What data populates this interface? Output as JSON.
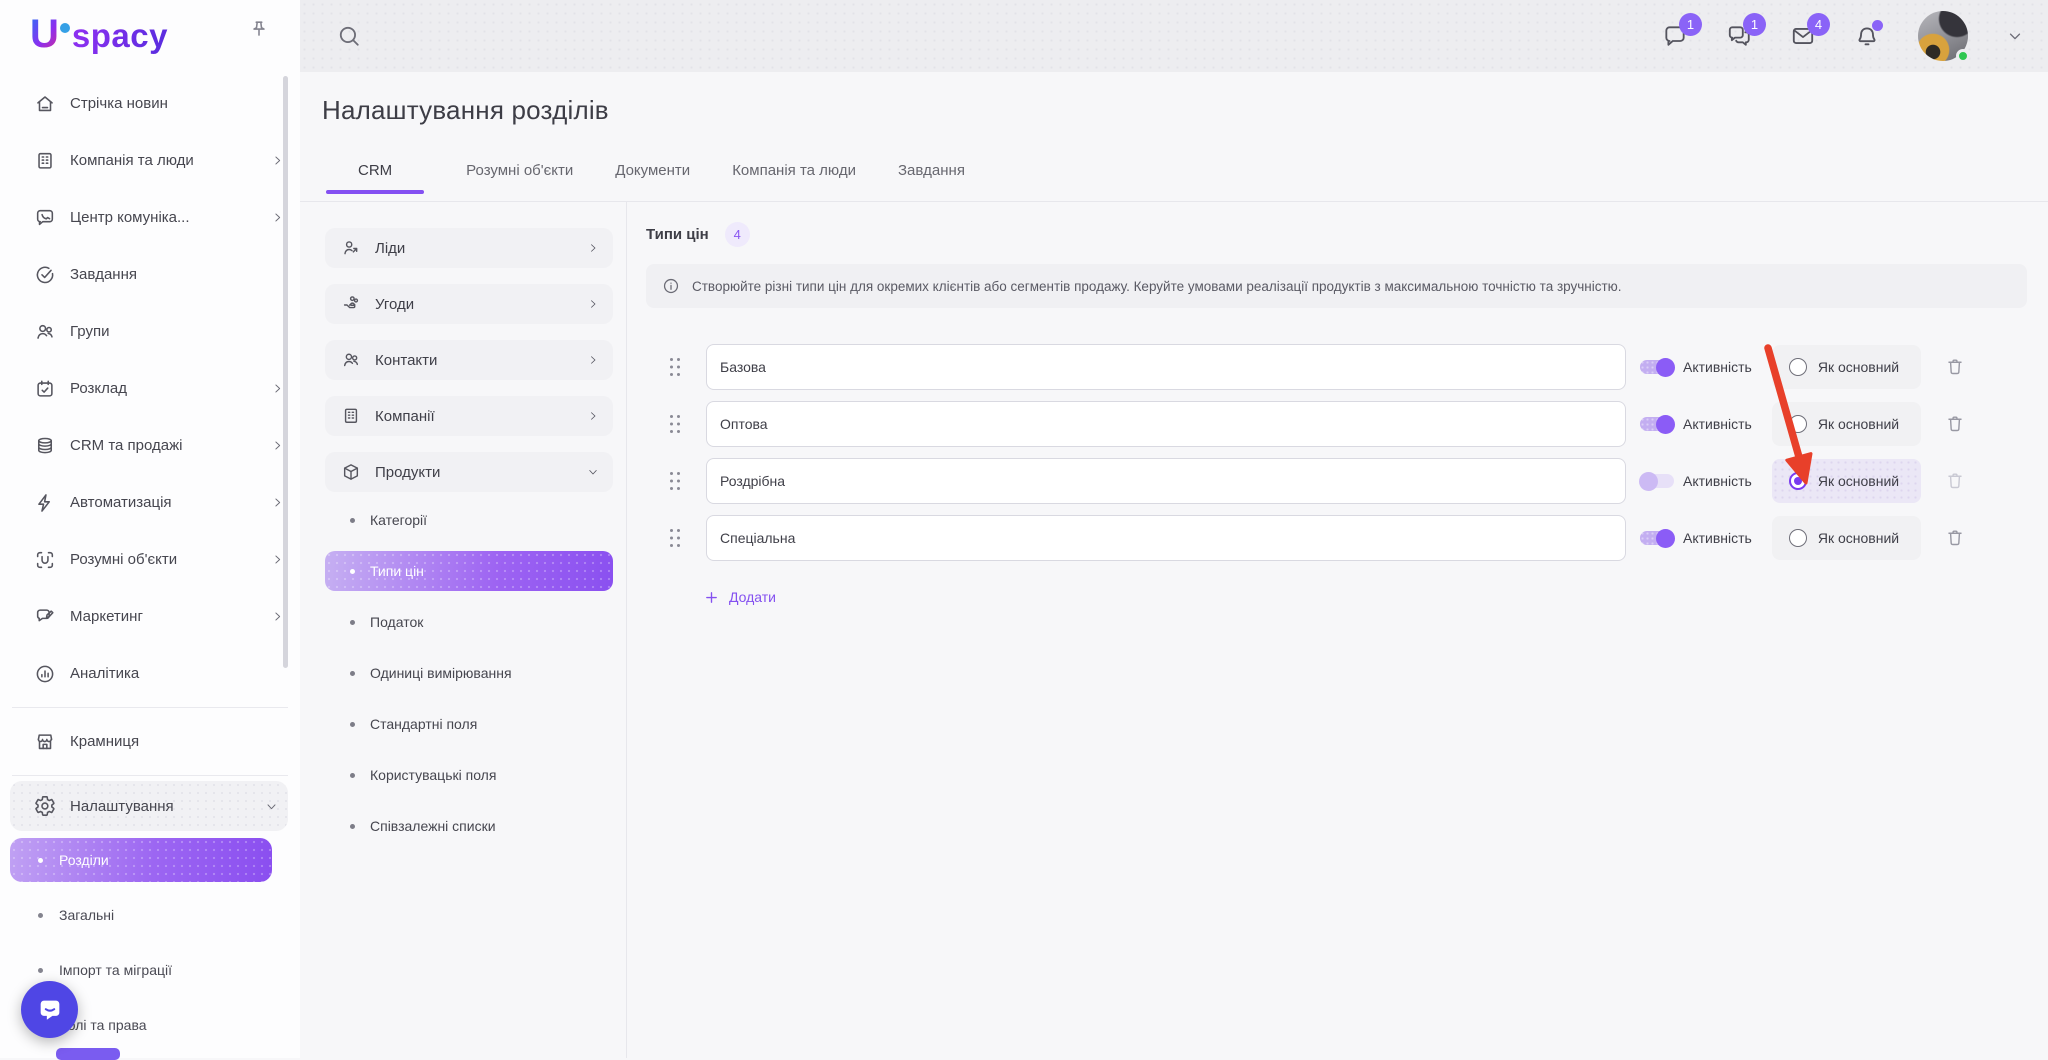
{
  "brand": {
    "name_u": "U",
    "name_rest": "spacy"
  },
  "colors": {
    "accent_purple": "#8450f2",
    "badge_purple": "#8a63f7",
    "toggle_on": "#8b5cf6",
    "arrow_red": "#e8402a",
    "intercom_indigo": "#4f46e5",
    "online_green": "#2fc751"
  },
  "topbar": {
    "chat_badge": "1",
    "channels_badge": "1",
    "mail_badge": "4",
    "bell_has_dot": true
  },
  "sidebar": {
    "items": [
      {
        "label": "Стрічка новин",
        "icon": "home",
        "chevron": null
      },
      {
        "label": "Компанія та люди",
        "icon": "company",
        "chevron": "right"
      },
      {
        "label": "Центр комуніка...",
        "icon": "comm-center",
        "chevron": "right"
      },
      {
        "label": "Завдання",
        "icon": "tasks",
        "chevron": null
      },
      {
        "label": "Групи",
        "icon": "groups",
        "chevron": null
      },
      {
        "label": "Розклад",
        "icon": "calendar",
        "chevron": "right"
      },
      {
        "label": "CRM та продажі",
        "icon": "crm",
        "chevron": "right"
      },
      {
        "label": "Автоматизація",
        "icon": "automation",
        "chevron": "right"
      },
      {
        "label": "Розумні об'єкти",
        "icon": "smart-objects",
        "chevron": "right"
      },
      {
        "label": "Маркетинг",
        "icon": "marketing",
        "chevron": "right"
      },
      {
        "label": "Аналітика",
        "icon": "analytics",
        "chevron": null
      },
      {
        "label": "Крамниця",
        "icon": "shop",
        "chevron": null,
        "divider_before": true
      },
      {
        "label": "Налаштування",
        "icon": "settings",
        "chevron": "down",
        "active": true,
        "divider_before": true
      }
    ],
    "subitems": [
      {
        "label": "Розділи",
        "selected": true
      },
      {
        "label": "Загальні"
      },
      {
        "label": "Імпорт та міграції"
      },
      {
        "label": "Ролі та права"
      }
    ]
  },
  "page": {
    "title": "Налаштування розділів"
  },
  "tabs": [
    {
      "label": "CRM",
      "active": true
    },
    {
      "label": "Розумні об'єкти"
    },
    {
      "label": "Документи"
    },
    {
      "label": "Компанія та люди"
    },
    {
      "label": "Завдання"
    }
  ],
  "crm_nav": {
    "sections": [
      {
        "label": "Ліди",
        "icon": "leads",
        "chevron": "right"
      },
      {
        "label": "Угоди",
        "icon": "deals",
        "chevron": "right"
      },
      {
        "label": "Контакти",
        "icon": "contacts",
        "chevron": "right"
      },
      {
        "label": "Компанії",
        "icon": "companies",
        "chevron": "right"
      },
      {
        "label": "Продукти",
        "icon": "products",
        "chevron": "down",
        "expanded": true
      }
    ],
    "product_subitems": [
      {
        "label": "Категорії"
      },
      {
        "label": "Типи цін",
        "selected": true
      },
      {
        "label": "Податок"
      },
      {
        "label": "Одиниці вимірювання"
      },
      {
        "label": "Стандартні поля"
      },
      {
        "label": "Користувацькі поля"
      },
      {
        "label": "Співзалежні списки"
      }
    ]
  },
  "content": {
    "heading": "Типи цін",
    "count": "4",
    "info": "Створюйте різні типи цін для окремих клієнтів або сегментів продажу. Керуйте умовами реалізації продуктів з максимальною точністю та зручністю.",
    "toggle_label": "Активність",
    "radio_label": "Як основний",
    "add_label": "Додати",
    "rows": [
      {
        "value": "Базова",
        "active": true,
        "is_main": false
      },
      {
        "value": "Оптова",
        "active": true,
        "is_main": false
      },
      {
        "value": "Роздрібна",
        "active": false,
        "is_main": true,
        "arrow_target": true
      },
      {
        "value": "Спеціальна",
        "active": true,
        "is_main": false
      }
    ]
  }
}
